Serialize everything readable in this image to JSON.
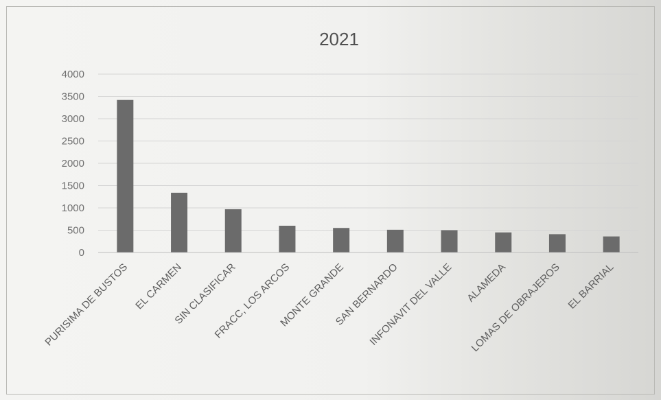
{
  "chart_data": {
    "type": "bar",
    "title": "2021",
    "categories": [
      "PURISIMA DE BUSTOS",
      "EL CARMEN",
      "SIN CLASIFICAR",
      "FRACC, LOS ARCOS",
      "MONTE GRANDE",
      "SAN BERNARDO",
      "INFONAVIT DEL VALLE",
      "ALAMEDA",
      "LOMAS DE OBRAJEROS",
      "EL BARRIAL"
    ],
    "values": [
      3420,
      1340,
      970,
      600,
      550,
      510,
      500,
      450,
      410,
      360
    ],
    "yticks": [
      "0",
      "500",
      "1000",
      "1500",
      "2000",
      "2500",
      "3000",
      "3500",
      "4000"
    ],
    "ylim": [
      0,
      4000
    ],
    "xlabel": "",
    "ylabel": "",
    "grid": true,
    "legend": "none",
    "bar_color": "#6b6b6b",
    "grid_color": "#d4d4d4"
  }
}
